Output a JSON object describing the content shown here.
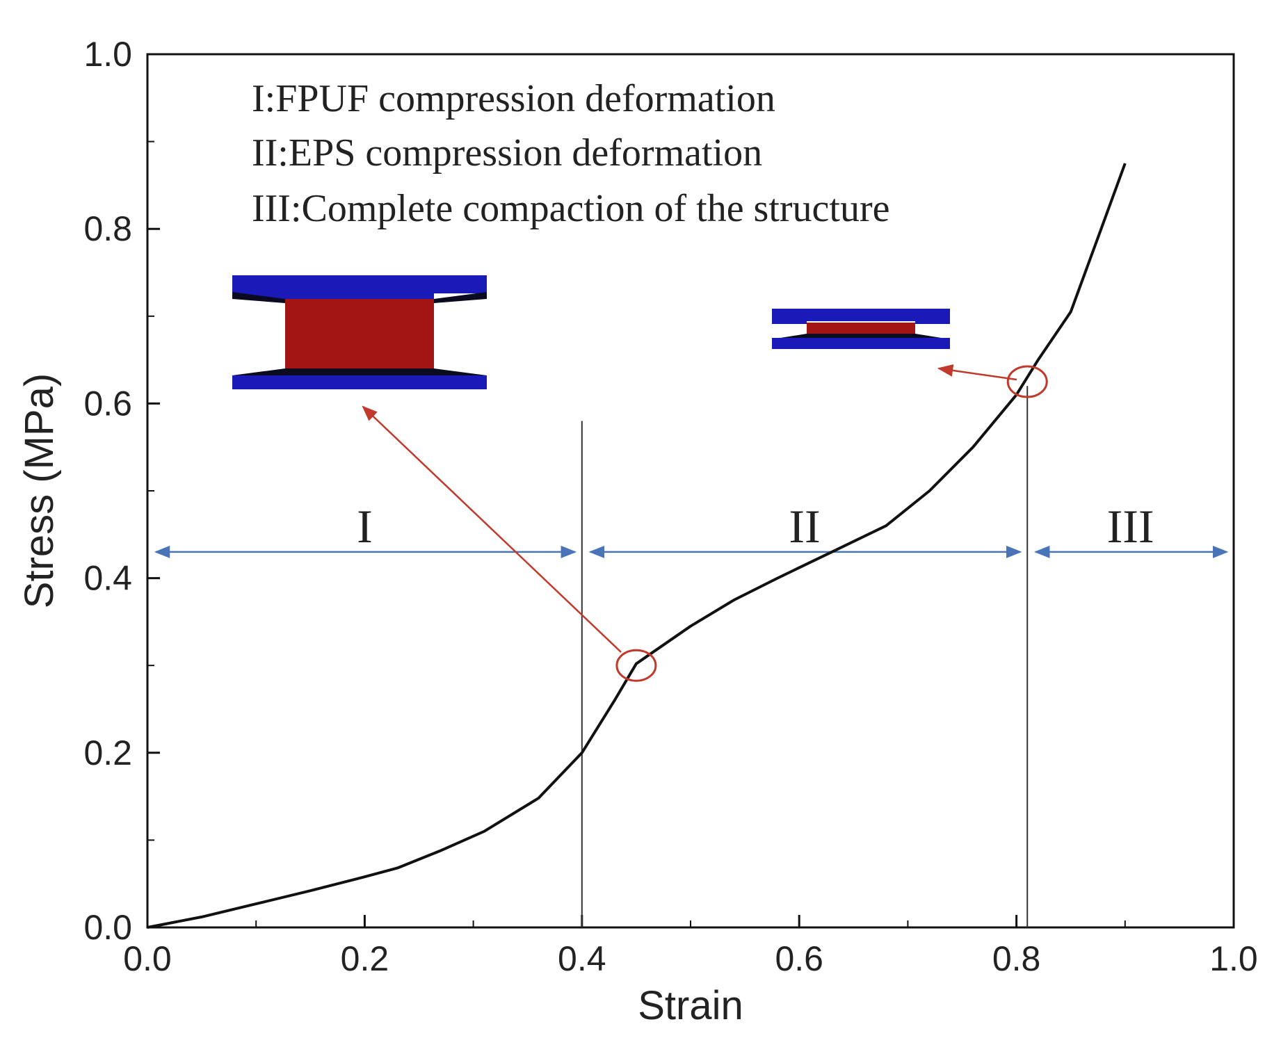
{
  "chart_data": {
    "type": "line",
    "xlabel": "Strain",
    "ylabel": "Stress (MPa)",
    "xlim": [
      0.0,
      1.0
    ],
    "ylim": [
      0.0,
      1.0
    ],
    "grid": false,
    "x_ticks": [
      "0.0",
      "0.2",
      "0.4",
      "0.6",
      "0.8",
      "1.0"
    ],
    "y_ticks": [
      "0.0",
      "0.2",
      "0.4",
      "0.6",
      "0.8",
      "1.0"
    ],
    "series": [
      {
        "color": "#111111",
        "x": [
          0.0,
          0.05,
          0.1,
          0.15,
          0.2,
          0.23,
          0.27,
          0.31,
          0.36,
          0.4,
          0.43,
          0.45,
          0.5,
          0.54,
          0.58,
          0.63,
          0.68,
          0.72,
          0.76,
          0.8,
          0.82,
          0.85,
          0.875,
          0.9
        ],
        "y": [
          0.0,
          0.012,
          0.027,
          0.042,
          0.058,
          0.068,
          0.088,
          0.11,
          0.148,
          0.2,
          0.26,
          0.302,
          0.345,
          0.375,
          0.4,
          0.43,
          0.46,
          0.5,
          0.55,
          0.61,
          0.65,
          0.705,
          0.79,
          0.875
        ]
      }
    ],
    "annotations": [
      "I:FPUF compression deformation",
      "II:EPS compression deformation",
      "III:Complete compaction of the structure"
    ],
    "regions": [
      {
        "label": "I",
        "from": 0.0,
        "to": 0.4
      },
      {
        "label": "II",
        "from": 0.4,
        "to": 0.81
      },
      {
        "label": "III",
        "from": 0.81,
        "to": 1.0
      }
    ],
    "region_arrow_y": 0.43,
    "dividers": [
      {
        "x": 0.4,
        "y_top": 0.58
      },
      {
        "x": 0.81,
        "y_top": 0.62
      }
    ],
    "highlight_points": [
      {
        "x": 0.45,
        "y": 0.3
      },
      {
        "x": 0.81,
        "y": 0.625
      }
    ],
    "colors": {
      "plate": "#1a1ab8",
      "foam": "#a31515",
      "arrow_red": "#c0392b",
      "arrow_blue": "#4a74b8"
    }
  }
}
